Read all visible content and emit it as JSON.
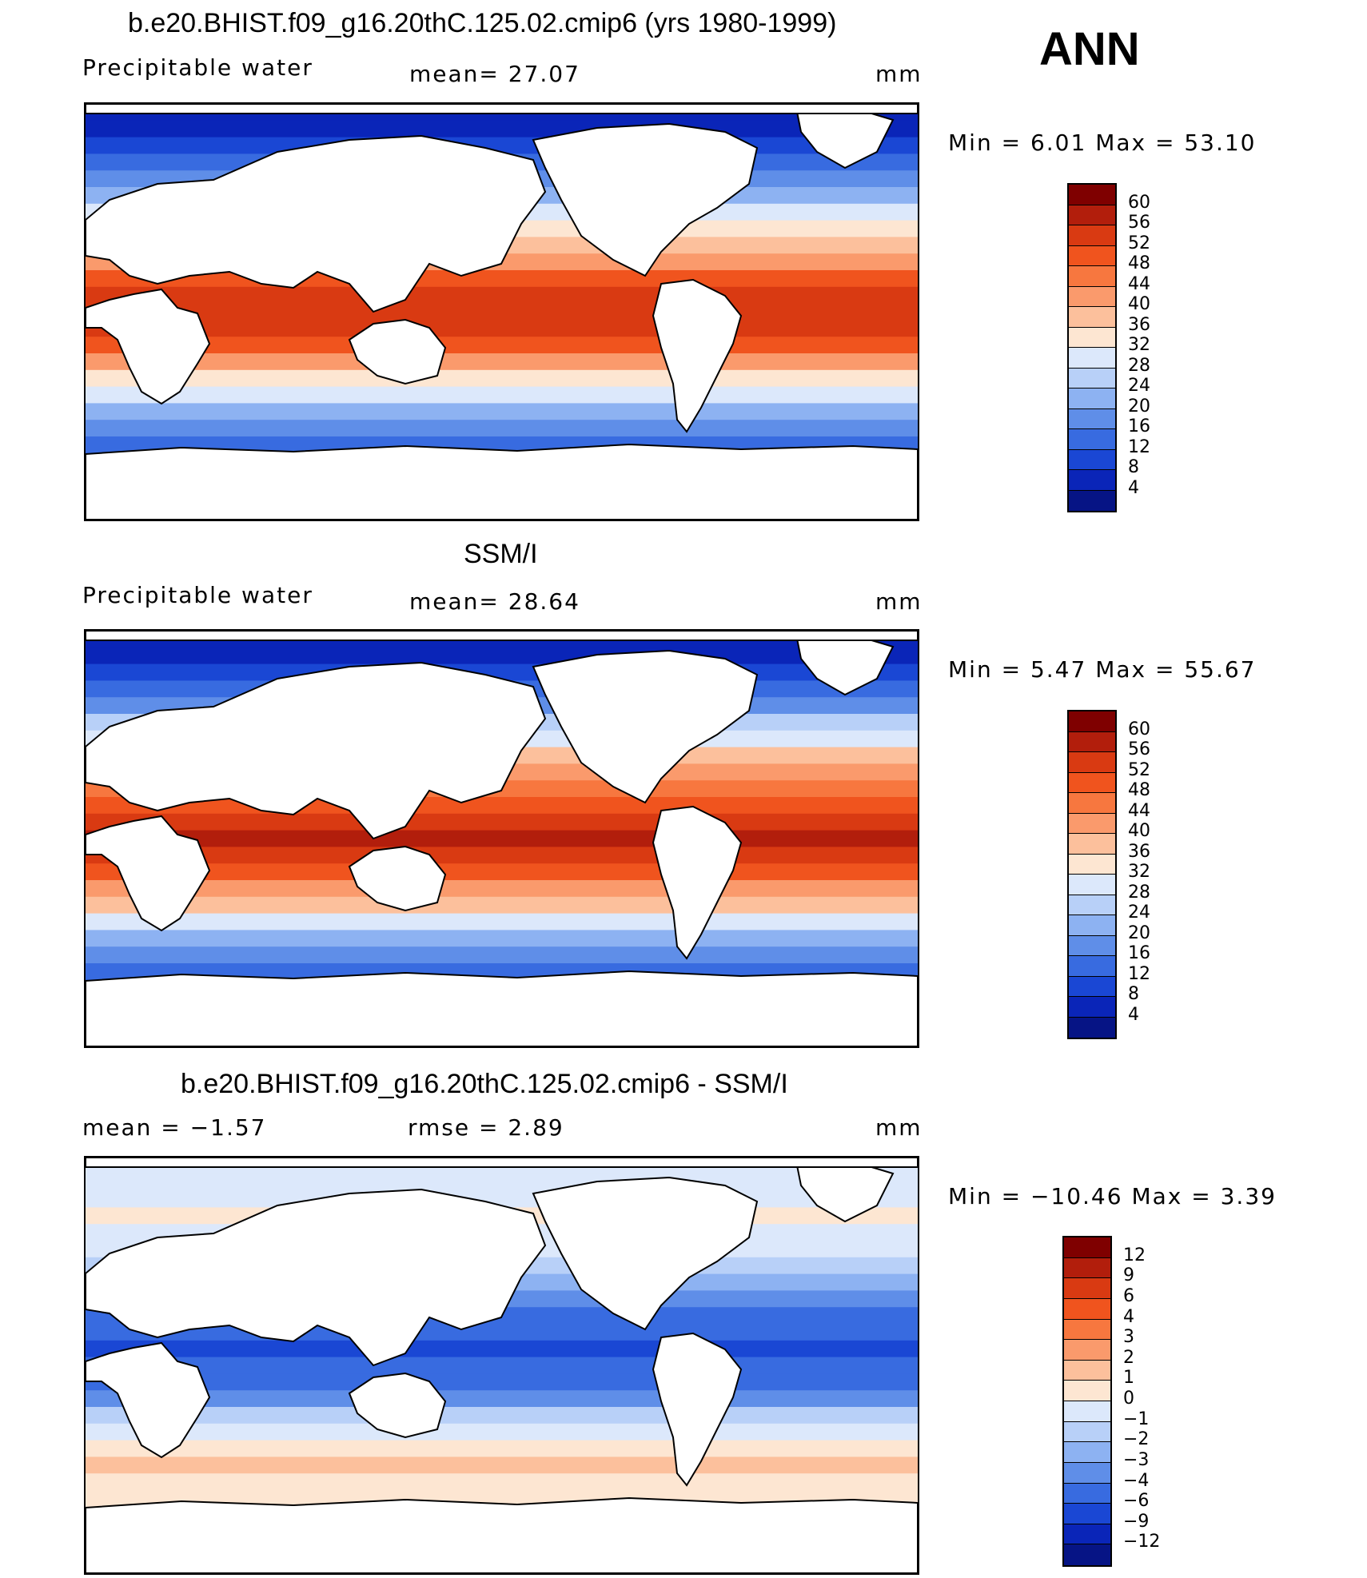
{
  "season": "ANN",
  "panels": [
    {
      "title": "b.e20.BHIST.f09_g16.20thC.125.02.cmip6 (yrs 1980-1999)",
      "left_label": "Precipitable  water",
      "mid_label": "mean=   27.07",
      "units": "mm",
      "minmax": "Min  =     6.01  Max  =    53.10",
      "colorbar": {
        "labels": [
          "60",
          "56",
          "52",
          "48",
          "44",
          "40",
          "36",
          "32",
          "28",
          "24",
          "20",
          "16",
          "12",
          "8",
          "4"
        ],
        "colors": [
          "#7f0000",
          "#b21e0c",
          "#d93a12",
          "#f0541e",
          "#f7773f",
          "#fa9a6c",
          "#fcc09c",
          "#fde6d2",
          "#dce8fb",
          "#b8d0f8",
          "#8db2f2",
          "#5f8ee8",
          "#386be0",
          "#1a47d4",
          "#0a25b8",
          "#061485"
        ]
      },
      "zonal_profile": [
        0.05,
        0.08,
        0.12,
        0.18,
        0.26,
        0.36,
        0.46,
        0.56,
        0.62,
        0.7,
        0.78,
        0.84,
        0.88,
        0.86,
        0.78,
        0.68,
        0.56,
        0.44,
        0.34,
        0.26,
        0.2,
        0.15,
        0.11,
        0.08,
        0.06
      ]
    },
    {
      "title": "SSM/I",
      "left_label": "Precipitable  water",
      "mid_label": "mean=   28.64",
      "units": "mm",
      "minmax": "Min  =     5.47  Max  =    55.67",
      "colorbar": {
        "labels": [
          "60",
          "56",
          "52",
          "48",
          "44",
          "40",
          "36",
          "32",
          "28",
          "24",
          "20",
          "16",
          "12",
          "8",
          "4"
        ],
        "colors": [
          "#7f0000",
          "#b21e0c",
          "#d93a12",
          "#f0541e",
          "#f7773f",
          "#fa9a6c",
          "#fcc09c",
          "#fde6d2",
          "#dce8fb",
          "#b8d0f8",
          "#8db2f2",
          "#5f8ee8",
          "#386be0",
          "#1a47d4",
          "#0a25b8",
          "#061485"
        ]
      },
      "zonal_profile": [
        0.05,
        0.08,
        0.12,
        0.18,
        0.27,
        0.38,
        0.49,
        0.59,
        0.66,
        0.74,
        0.82,
        0.88,
        0.91,
        0.88,
        0.8,
        0.69,
        0.57,
        0.45,
        0.35,
        0.27,
        0.2,
        0.15,
        0.11,
        0.08,
        0.06
      ]
    },
    {
      "title": "b.e20.BHIST.f09_g16.20thC.125.02.cmip6 - SSM/I",
      "left_label": "mean  =    −1.57",
      "mid_label": "rmse  =     2.89",
      "units": "mm",
      "minmax": "Min  = −10.46  Max  =     3.39",
      "colorbar": {
        "labels": [
          "12",
          "9",
          "6",
          "4",
          "3",
          "2",
          "1",
          "0",
          "−1",
          "−2",
          "−3",
          "−4",
          "−6",
          "−9",
          "−12"
        ],
        "colors": [
          "#7f0000",
          "#b21e0c",
          "#d93a12",
          "#f0541e",
          "#f7773f",
          "#fa9a6c",
          "#fcc09c",
          "#fde6d2",
          "#dce8fb",
          "#b8d0f8",
          "#8db2f2",
          "#5f8ee8",
          "#386be0",
          "#1a47d4",
          "#0a25b8",
          "#061485"
        ]
      },
      "zonal_profile": [
        0.45,
        0.48,
        0.5,
        0.52,
        0.5,
        0.46,
        0.4,
        0.34,
        0.28,
        0.22,
        0.18,
        0.16,
        0.18,
        0.22,
        0.3,
        0.4,
        0.5,
        0.56,
        0.58,
        0.56,
        0.52,
        0.5,
        0.48,
        0.47,
        0.47
      ]
    }
  ]
}
